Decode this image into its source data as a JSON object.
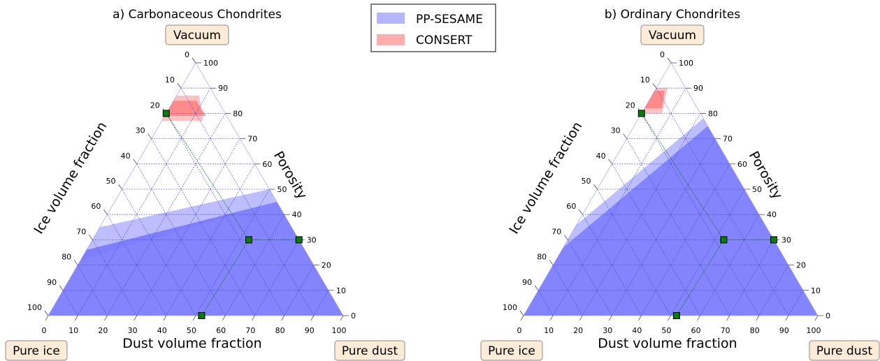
{
  "legend": {
    "items": [
      {
        "label": "PP-SESAME",
        "color": "#7777ff"
      },
      {
        "label": "CONSERT",
        "color": "#ff7777"
      }
    ]
  },
  "chart_data": [
    {
      "type": "ternary",
      "title": "a) Carbonaceous Chondrites",
      "xlabel": "Dust volume fraction",
      "left_axis_label": "Ice volume fraction",
      "right_axis_label": "Porosity",
      "corner_labels": {
        "top": "Vacuum",
        "left": "Pure ice",
        "right": "Pure dust"
      },
      "ticks": [
        0,
        10,
        20,
        30,
        40,
        50,
        60,
        70,
        80,
        90,
        100
      ],
      "grid": true,
      "regions": [
        {
          "name": "PP-SESAME",
          "color": "#7777ff",
          "shade": "light",
          "opacity": 0.6,
          "porosity_at_zero_dust": [
            22,
            35
          ],
          "porosity_at_full_dust": [
            45,
            50
          ]
        },
        {
          "name": "PP-SESAME",
          "color": "#7777ff",
          "shade": "dark",
          "opacity": 0.9,
          "porosity_at_zero_dust": 0,
          "porosity_at_full_dust": 0,
          "upper_porosity_at_zero_dust": 26,
          "upper_porosity_at_full_dust": 45
        },
        {
          "name": "CONSERT",
          "color": "#ff7777",
          "shade": "light",
          "porosity_range": [
            77,
            87
          ],
          "dust_range": [
            0,
            14
          ]
        },
        {
          "name": "CONSERT",
          "color": "#ff7777",
          "shade": "dark",
          "porosity_range": [
            79,
            85
          ],
          "dust_range": [
            0,
            14
          ]
        }
      ],
      "points": [
        {
          "dust": 0,
          "porosity": 80,
          "ice": 20
        },
        {
          "dust": 53,
          "porosity": 30,
          "ice": 17
        },
        {
          "dust": 70,
          "porosity": 30,
          "ice": 0
        },
        {
          "dust": 52,
          "porosity": 0,
          "ice": 48
        }
      ]
    },
    {
      "type": "ternary",
      "title": "b) Ordinary Chondrites",
      "xlabel": "Dust volume fraction",
      "left_axis_label": "Ice volume fraction",
      "right_axis_label": "Porosity",
      "corner_labels": {
        "top": "Vacuum",
        "left": "Pure ice",
        "right": "Pure dust"
      },
      "ticks": [
        0,
        10,
        20,
        30,
        40,
        50,
        60,
        70,
        80,
        90,
        100
      ],
      "grid": true,
      "regions": [
        {
          "name": "PP-SESAME",
          "color": "#7777ff",
          "shade": "light",
          "opacity": 0.6,
          "porosity_at_zero_dust": [
            27,
            36
          ],
          "porosity_at_full_dust": [
            75,
            78
          ]
        },
        {
          "name": "PP-SESAME",
          "color": "#7777ff",
          "shade": "dark",
          "opacity": 0.9,
          "porosity_at_zero_dust": 0,
          "porosity_at_full_dust": 0,
          "upper_porosity_at_zero_dust": 27,
          "upper_porosity_at_full_dust": 75
        },
        {
          "name": "CONSERT",
          "color": "#ff7777",
          "shade": "light",
          "porosity_range": [
            80,
            90
          ],
          "dust_range": [
            0,
            7
          ]
        },
        {
          "name": "CONSERT",
          "color": "#ff7777",
          "shade": "dark",
          "porosity_range": [
            82,
            89
          ],
          "dust_range": [
            0,
            6
          ]
        }
      ],
      "points": [
        {
          "dust": 0,
          "porosity": 80,
          "ice": 20
        },
        {
          "dust": 53,
          "porosity": 30,
          "ice": 17
        },
        {
          "dust": 70,
          "porosity": 30,
          "ice": 0
        },
        {
          "dust": 52,
          "porosity": 0,
          "ice": 48
        }
      ]
    }
  ]
}
